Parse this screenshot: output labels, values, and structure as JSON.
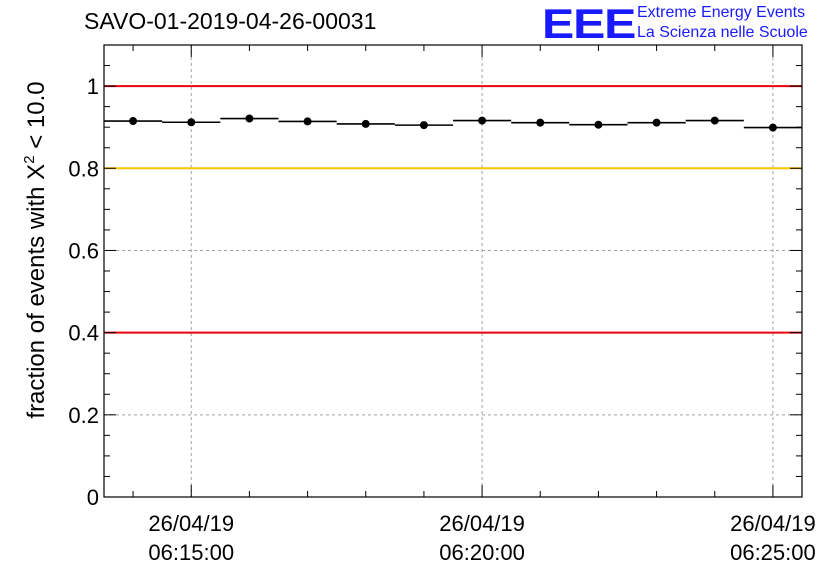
{
  "title": "SAVO-01-2019-04-26-00031",
  "logo": {
    "mark": "EEE",
    "line1": "Extreme Energy Events",
    "line2": "La Scienza nelle Scuole"
  },
  "chart_data": {
    "type": "scatter",
    "title": "SAVO-01-2019-04-26-00031",
    "xlabel": "",
    "ylabel_prefix": "fraction of events with X",
    "ylabel_sup": "2",
    "ylabel_suffix": " < 10.0",
    "x_unit": "minutes since 06:15:00",
    "xlim": [
      -1.5,
      10.5
    ],
    "ylim": [
      0,
      1.1
    ],
    "grid": true,
    "yticks": [
      0,
      0.2,
      0.4,
      0.6,
      0.8,
      1
    ],
    "ytick_labels": [
      "0",
      "0.2",
      "0.4",
      "0.6",
      "0.8",
      "1"
    ],
    "xticks": [
      0,
      5,
      10
    ],
    "xtick_labels": [
      [
        "26/04/19",
        "06:15:00"
      ],
      [
        "26/04/19",
        "06:20:00"
      ],
      [
        "26/04/19",
        "06:25:00"
      ]
    ],
    "x_minor_ticks": [
      -1,
      1,
      2,
      3,
      4,
      6,
      7,
      8,
      9
    ],
    "reference_lines": [
      {
        "y": 1.0,
        "color": "#e8000b"
      },
      {
        "y": 0.8,
        "color": "#ffc400"
      },
      {
        "y": 0.4,
        "color": "#e8000b"
      }
    ],
    "bin_half_width": 0.5,
    "series": [
      {
        "name": "fraction",
        "x": [
          -1,
          0,
          1,
          2,
          3,
          4,
          5,
          6,
          7,
          8,
          9,
          10
        ],
        "y": [
          0.915,
          0.912,
          0.921,
          0.914,
          0.908,
          0.905,
          0.916,
          0.911,
          0.906,
          0.911,
          0.916,
          0.899
        ]
      }
    ]
  }
}
